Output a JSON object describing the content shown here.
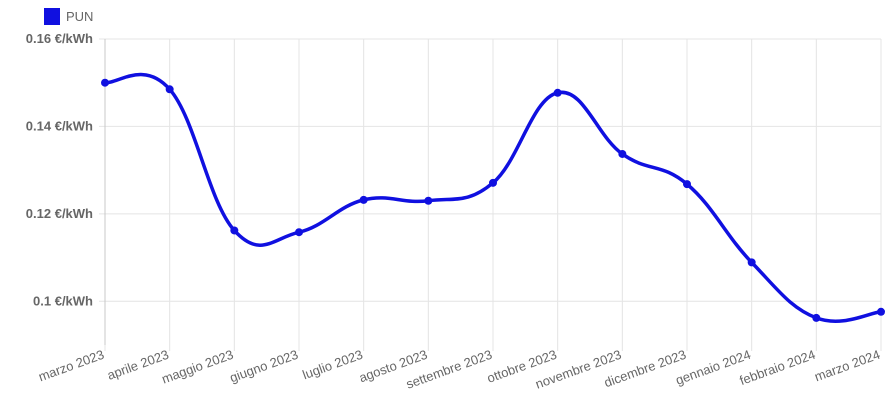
{
  "chart_data": {
    "type": "line",
    "legend": {
      "position": "top-left",
      "entries": [
        "PUN"
      ]
    },
    "categories": [
      "marzo 2023",
      "aprile 2023",
      "maggio 2023",
      "giugno 2023",
      "luglio 2023",
      "agosto 2023",
      "settembre 2023",
      "ottobre 2023",
      "novembre 2023",
      "dicembre 2023",
      "gennaio 2024",
      "febbraio 2024",
      "marzo 2024"
    ],
    "series": [
      {
        "name": "PUN",
        "color": "#1010e0",
        "values": [
          0.15,
          0.1485,
          0.1162,
          0.1158,
          0.1232,
          0.123,
          0.1271,
          0.1477,
          0.1337,
          0.1268,
          0.1089,
          0.0962,
          0.0976
        ]
      }
    ],
    "y_ticks": [
      {
        "value": 0.1,
        "label": "0.1 €/kWh"
      },
      {
        "value": 0.12,
        "label": "0.12 €/kWh"
      },
      {
        "value": 0.14,
        "label": "0.14 €/kWh"
      },
      {
        "value": 0.16,
        "label": "0.16 €/kWh"
      }
    ],
    "ylim": [
      0.09,
      0.16
    ],
    "grid": true
  }
}
